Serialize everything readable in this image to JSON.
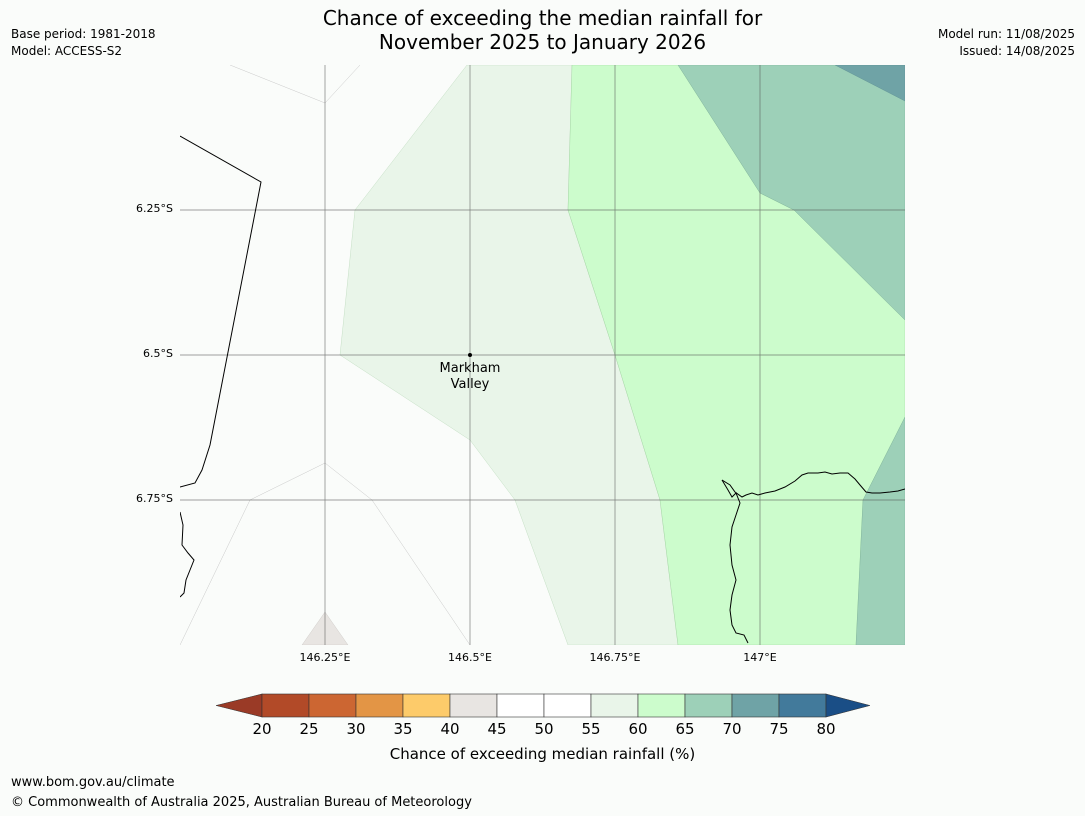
{
  "title_line1": "Chance of exceeding the median rainfall for",
  "title_line2": "November 2025 to January 2026",
  "meta_left": [
    "Base period: 1981-2018",
    "Model: ACCESS-S2"
  ],
  "meta_right": [
    "Model run: 11/08/2025",
    "Issued: 14/08/2025"
  ],
  "map": {
    "location_label_line1": "Markham",
    "location_label_line2": "Valley",
    "lat_ticks": [
      "6.25°S",
      "6.5°S",
      "6.75°S"
    ],
    "lon_ticks": [
      "146.25°E",
      "146.5°E",
      "146.75°E",
      "147°E"
    ]
  },
  "colorbar": {
    "ticks": [
      "20",
      "25",
      "30",
      "35",
      "40",
      "45",
      "50",
      "55",
      "60",
      "65",
      "70",
      "75",
      "80"
    ],
    "label": "Chance of exceeding median rainfall (%)",
    "colors": {
      "below20": "#9a3a26",
      "20-25": "#b24a28",
      "25-30": "#cc6632",
      "30-35": "#e39545",
      "35-40": "#fdcb6a",
      "40-45": "#e8e5e2",
      "45-50": "#ffffff",
      "50-55": "#ffffff",
      "55-60": "#e9f5e9",
      "60-65": "#ccfccc",
      "65-70": "#9dd0b8",
      "70-75": "#6fa3a6",
      "75-80": "#427a9b",
      "above80": "#1a4e86"
    }
  },
  "footer": {
    "url": "www.bom.gov.au/climate",
    "copyright": "© Commonwealth of Australia 2025, Australian Bureau of Meteorology"
  }
}
